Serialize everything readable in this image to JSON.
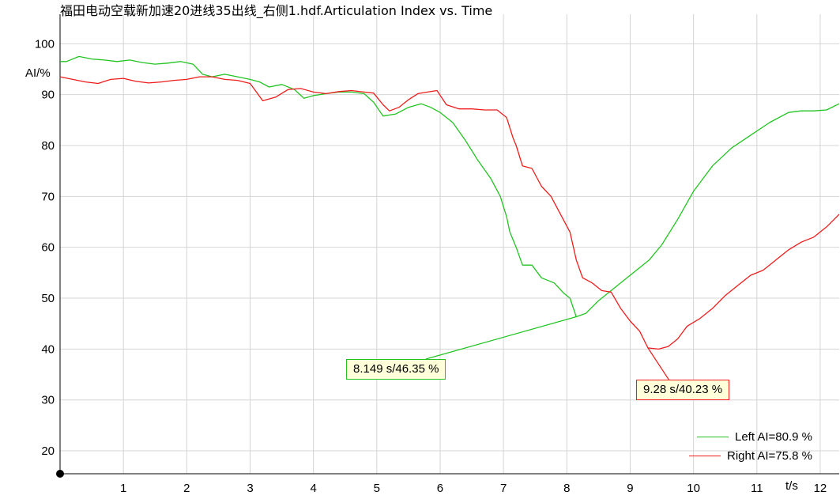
{
  "chart_data": {
    "type": "line",
    "title": "福田电动空载新加速20进线35出线_右侧1.hdf.Articulation Index vs. Time",
    "ylabel": "AI/%",
    "xlabel": "t/s",
    "xlim": [
      0,
      12.3
    ],
    "ylim": [
      15.5,
      105.8
    ],
    "xticks": [
      1,
      2,
      3,
      4,
      5,
      6,
      7,
      8,
      9,
      10,
      11,
      12
    ],
    "yticks": [
      20,
      30,
      40,
      50,
      60,
      70,
      80,
      90,
      100
    ],
    "grid": true,
    "legend_position": "bottom-right",
    "series": [
      {
        "name": "Left AI=80.9 %",
        "color": "#22c322",
        "x": [
          0,
          0.1,
          0.3,
          0.5,
          0.7,
          0.9,
          1.1,
          1.3,
          1.5,
          1.7,
          1.9,
          2.1,
          2.25,
          2.4,
          2.6,
          2.8,
          3.0,
          3.15,
          3.3,
          3.5,
          3.7,
          3.85,
          4.0,
          4.2,
          4.4,
          4.6,
          4.8,
          4.95,
          5.1,
          5.3,
          5.5,
          5.7,
          5.85,
          6.0,
          6.2,
          6.4,
          6.6,
          6.8,
          6.95,
          7.05,
          7.1,
          7.2,
          7.3,
          7.45,
          7.6,
          7.8,
          7.95,
          8.05,
          8.149,
          8.3,
          8.5,
          8.7,
          8.9,
          9.1,
          9.3,
          9.5,
          9.75,
          10.0,
          10.3,
          10.6,
          10.9,
          11.2,
          11.5,
          11.7,
          11.9,
          12.1,
          12.3
        ],
        "y": [
          96.5,
          96.5,
          97.5,
          97.0,
          96.8,
          96.5,
          96.8,
          96.3,
          96.0,
          96.2,
          96.5,
          96.0,
          94.0,
          93.5,
          94.0,
          93.5,
          93.0,
          92.5,
          91.5,
          92.0,
          91.0,
          89.3,
          89.8,
          90.2,
          90.5,
          90.5,
          90.2,
          88.5,
          85.8,
          86.2,
          87.5,
          88.2,
          87.5,
          86.5,
          84.5,
          81.0,
          77.0,
          73.5,
          70.0,
          66.0,
          63.0,
          60.0,
          56.5,
          56.5,
          54.0,
          53.0,
          51.0,
          50.0,
          46.35,
          47.0,
          49.5,
          51.5,
          53.5,
          55.5,
          57.5,
          60.5,
          65.5,
          71.0,
          76.0,
          79.5,
          82.0,
          84.5,
          86.5,
          86.8,
          86.8,
          87.0,
          88.2
        ]
      },
      {
        "name": "Right AI=75.8 %",
        "color": "#ee1c1c",
        "x": [
          0,
          0.2,
          0.4,
          0.6,
          0.8,
          1.0,
          1.2,
          1.4,
          1.6,
          1.8,
          2.0,
          2.2,
          2.4,
          2.6,
          2.8,
          3.0,
          3.1,
          3.2,
          3.4,
          3.6,
          3.8,
          4.0,
          4.2,
          4.4,
          4.6,
          4.8,
          4.95,
          5.1,
          5.2,
          5.35,
          5.5,
          5.65,
          5.8,
          5.95,
          6.1,
          6.3,
          6.5,
          6.7,
          6.9,
          7.05,
          7.15,
          7.2,
          7.3,
          7.45,
          7.6,
          7.75,
          7.9,
          8.05,
          8.15,
          8.25,
          8.4,
          8.55,
          8.7,
          8.85,
          9.0,
          9.15,
          9.28,
          9.45,
          9.6,
          9.75,
          9.9,
          10.1,
          10.3,
          10.5,
          10.7,
          10.9,
          11.1,
          11.3,
          11.5,
          11.7,
          11.9,
          12.1,
          12.3
        ],
        "y": [
          93.5,
          93.0,
          92.5,
          92.2,
          93.0,
          93.2,
          92.6,
          92.3,
          92.5,
          92.8,
          93.0,
          93.5,
          93.5,
          93.0,
          92.8,
          92.2,
          90.5,
          88.8,
          89.5,
          91.0,
          91.2,
          90.5,
          90.2,
          90.6,
          90.8,
          90.5,
          90.3,
          88.0,
          86.8,
          87.5,
          89.0,
          90.2,
          90.5,
          90.8,
          88.0,
          87.2,
          87.2,
          87.0,
          87.0,
          85.5,
          81.5,
          80.0,
          76.0,
          75.5,
          72.0,
          70.0,
          66.5,
          63.0,
          57.5,
          54.0,
          53.0,
          51.5,
          51.2,
          48.0,
          45.5,
          43.5,
          40.23,
          40.0,
          40.5,
          42.0,
          44.5,
          46.0,
          48.0,
          50.5,
          52.5,
          54.5,
          55.5,
          57.5,
          59.5,
          61.0,
          62.0,
          64.0,
          66.5
        ]
      }
    ],
    "annotations": [
      {
        "text": "8.149 s/46.35 %",
        "series": "Left AI=80.9 %",
        "x": 8.149,
        "y": 46.35,
        "color": "#22c322"
      },
      {
        "text": "9.28 s/40.23 %",
        "series": "Right AI=75.8 %",
        "x": 9.28,
        "y": 40.23,
        "color": "#ee1c1c"
      }
    ]
  }
}
